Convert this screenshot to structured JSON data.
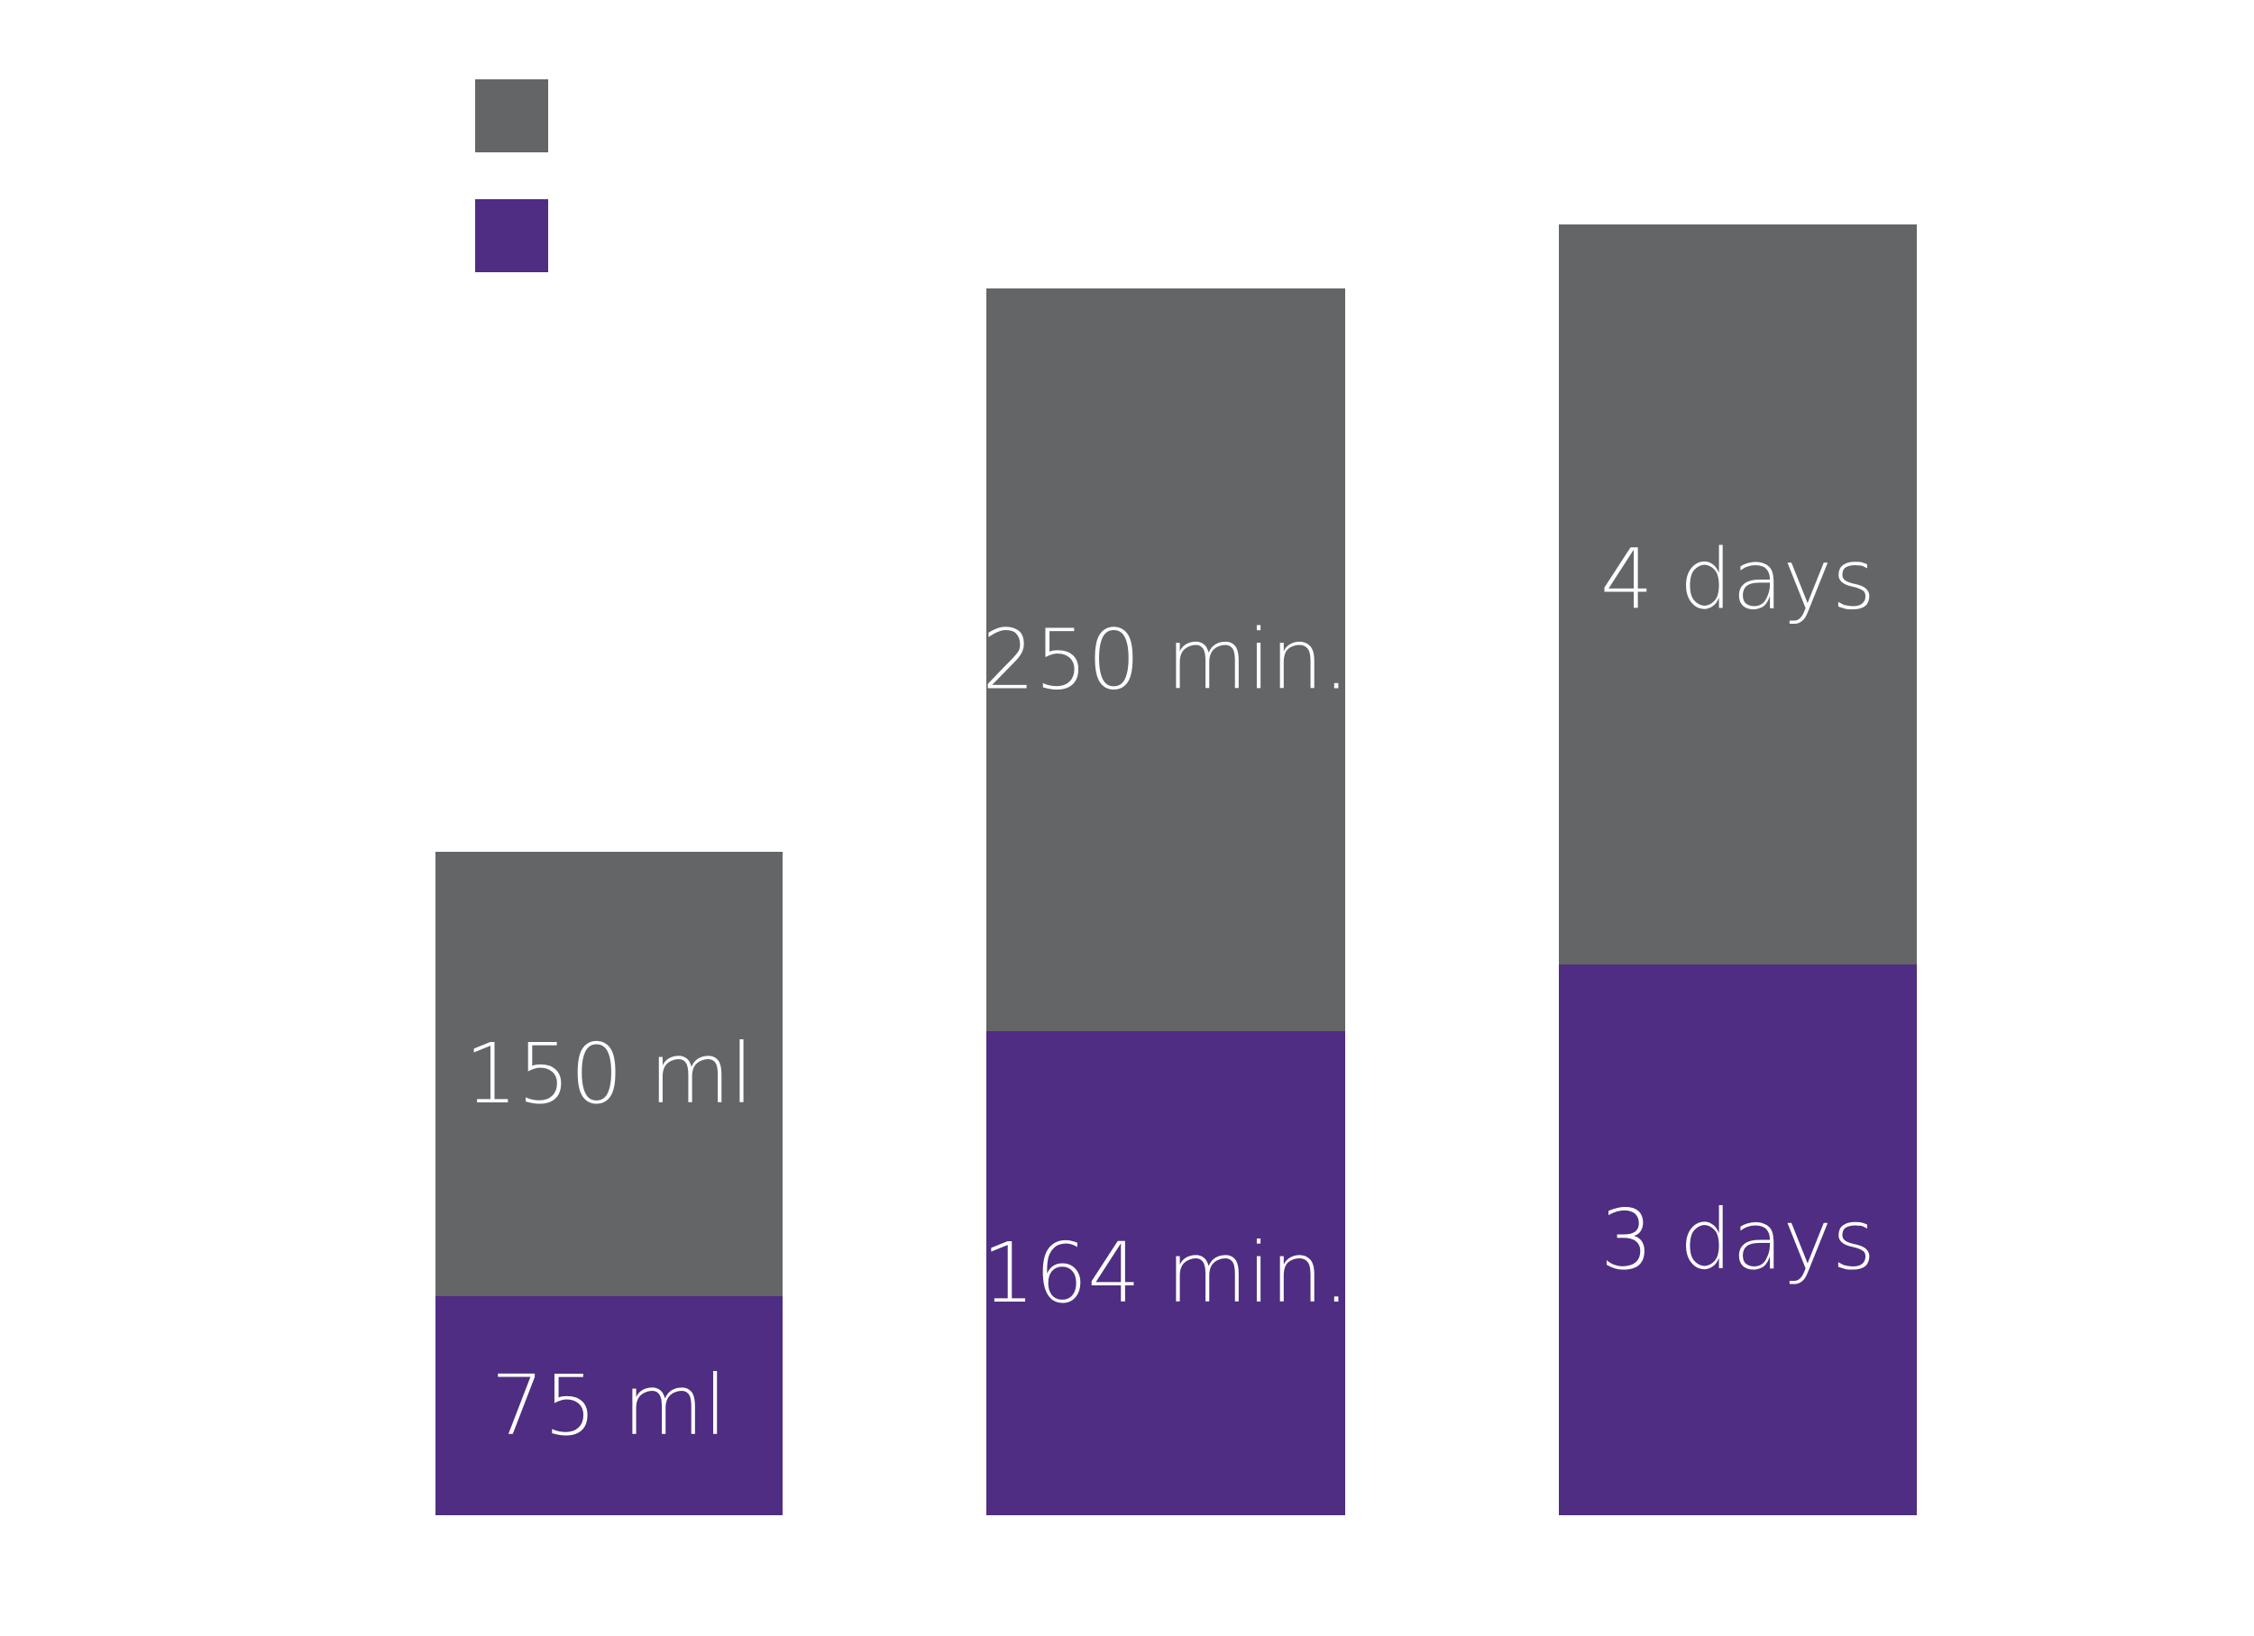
{
  "chart_data": {
    "type": "bar",
    "stacked": true,
    "categories": [
      "",
      "",
      ""
    ],
    "series": [
      {
        "key": "lower",
        "color": "#4f2d82",
        "values": [
          75,
          164,
          3
        ],
        "labels": [
          "75 ml",
          "164 min.",
          "3 days"
        ]
      },
      {
        "key": "upper",
        "color": "#646567",
        "values": [
          150,
          250,
          4
        ],
        "labels": [
          "150 ml",
          "250 min.",
          "4 days"
        ]
      }
    ],
    "legend": {
      "position": "top-left",
      "entries": [
        {
          "color": "#646567",
          "label": ""
        },
        {
          "color": "#4f2d82",
          "label": ""
        }
      ]
    },
    "grid": false,
    "axes_visible": false
  }
}
